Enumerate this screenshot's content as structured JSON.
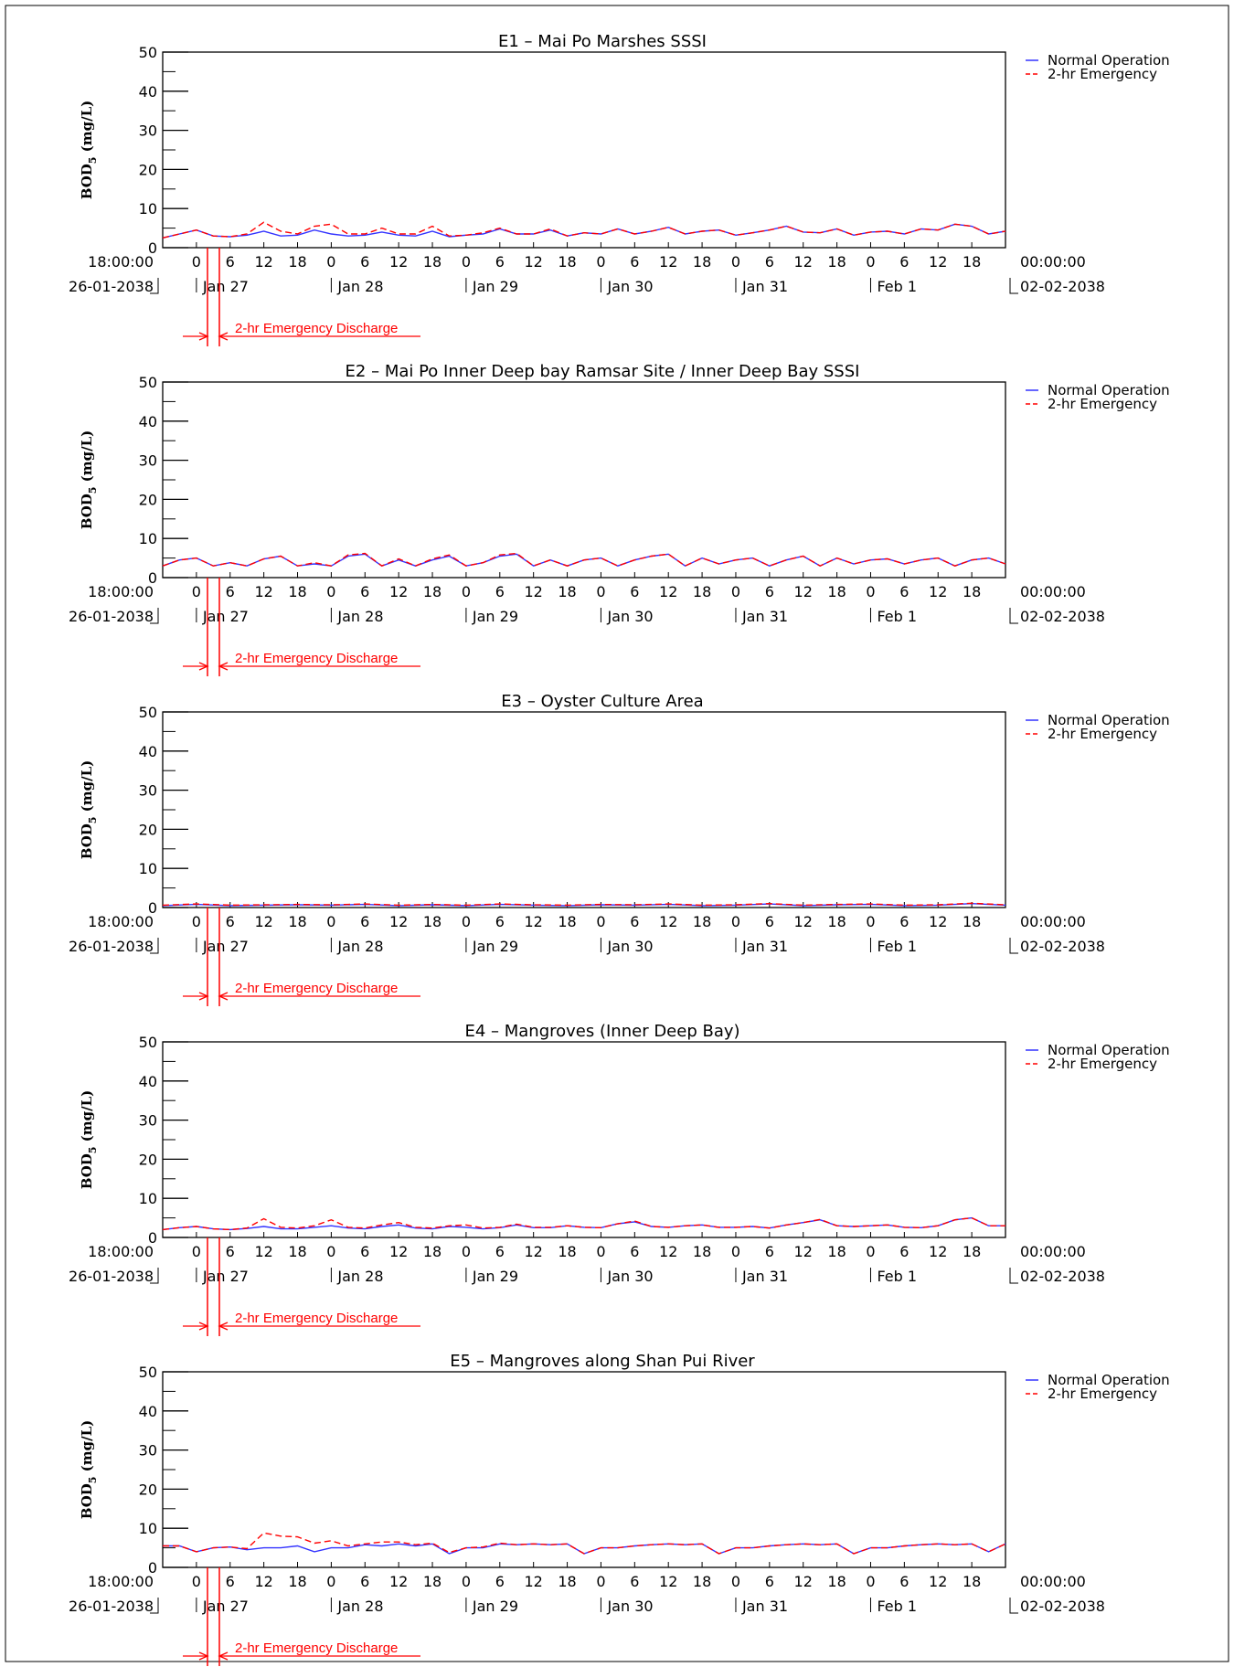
{
  "figure": {
    "legend": {
      "normal": {
        "label": "Normal Operation",
        "color": "#3333ff"
      },
      "emergency": {
        "label": "2-hr Emergency",
        "color": "#ff0000"
      }
    },
    "ylabel_main": "BOD",
    "ylabel_sub": "5",
    "ylabel_unit": " (mg/L)",
    "start_time": "18:00:00",
    "start_date": "26-01-2038",
    "end_time": "00:00:00",
    "end_date": "02-02-2038",
    "hour_ticks": [
      "0",
      "6",
      "12",
      "18",
      "0",
      "6",
      "12",
      "18",
      "0",
      "6",
      "12",
      "18",
      "0",
      "6",
      "12",
      "18",
      "0",
      "6",
      "12",
      "18",
      "0",
      "6",
      "12",
      "18"
    ],
    "day_labels": [
      "Jan 27",
      "Jan 28",
      "Jan 29",
      "Jan 30",
      "Jan 31",
      "Feb 1"
    ],
    "emergency_label": "2-hr Emergency Discharge",
    "y_ticks": [
      0,
      10,
      20,
      30,
      40,
      50
    ]
  },
  "chart_data": [
    {
      "type": "line",
      "title": "E1 – Mai Po Marshes SSSI",
      "ylabel": "BOD5 (mg/L)",
      "ylim": [
        0,
        50
      ],
      "x_unit": "hours from 26-01-2038 18:00",
      "xlim": [
        0,
        150
      ],
      "series": [
        {
          "name": "Normal Operation",
          "x": [
            0,
            3,
            6,
            9,
            12,
            15,
            18,
            21,
            24,
            27,
            30,
            33,
            36,
            39,
            42,
            45,
            48,
            51,
            54,
            57,
            60,
            63,
            66,
            69,
            72,
            75,
            78,
            81,
            84,
            87,
            90,
            93,
            96,
            99,
            102,
            105,
            108,
            111,
            114,
            117,
            120,
            123,
            126,
            129,
            132,
            135,
            138,
            141,
            144,
            147,
            150
          ],
          "values": [
            2.5,
            3.5,
            4.5,
            3.0,
            2.8,
            3.2,
            4.2,
            3.0,
            3.2,
            4.5,
            3.5,
            3.0,
            3.2,
            4.0,
            3.2,
            3.0,
            4.2,
            2.8,
            3.2,
            3.5,
            4.8,
            3.5,
            3.5,
            4.5,
            3.0,
            3.8,
            3.5,
            4.8,
            3.5,
            4.2,
            5.2,
            3.5,
            4.2,
            4.5,
            3.2,
            3.8,
            4.5,
            5.5,
            4.0,
            3.8,
            4.8,
            3.2,
            4.0,
            4.2,
            3.5,
            4.8,
            4.5,
            6.0,
            5.5,
            3.5,
            4.2
          ]
        },
        {
          "name": "2-hr Emergency",
          "x": [
            0,
            3,
            6,
            9,
            12,
            15,
            18,
            21,
            24,
            27,
            30,
            33,
            36,
            39,
            42,
            45,
            48,
            51,
            54,
            57,
            60,
            63,
            66,
            69,
            72,
            75,
            78,
            81,
            84,
            87,
            90,
            93,
            96,
            99,
            102,
            105,
            108,
            111,
            114,
            117,
            120,
            123,
            126,
            129,
            132,
            135,
            138,
            141,
            144,
            147,
            150
          ],
          "values": [
            2.5,
            3.5,
            4.5,
            3.0,
            2.8,
            3.5,
            6.5,
            4.2,
            3.5,
            5.5,
            6.0,
            3.5,
            3.5,
            5.0,
            3.5,
            3.5,
            5.5,
            3.0,
            3.2,
            3.8,
            5.0,
            3.5,
            3.5,
            4.8,
            3.0,
            3.8,
            3.5,
            4.8,
            3.5,
            4.2,
            5.2,
            3.5,
            4.2,
            4.5,
            3.2,
            3.8,
            4.5,
            5.5,
            4.0,
            3.8,
            4.8,
            3.2,
            4.0,
            4.2,
            3.5,
            4.8,
            4.5,
            6.0,
            5.5,
            3.5,
            4.2
          ]
        }
      ]
    },
    {
      "type": "line",
      "title": "E2 – Mai Po Inner Deep bay Ramsar Site / Inner Deep Bay SSSI",
      "ylabel": "BOD5 (mg/L)",
      "ylim": [
        0,
        50
      ],
      "x_unit": "hours from 26-01-2038 18:00",
      "xlim": [
        0,
        150
      ],
      "series": [
        {
          "name": "Normal Operation",
          "x": [
            0,
            3,
            6,
            9,
            12,
            15,
            18,
            21,
            24,
            27,
            30,
            33,
            36,
            39,
            42,
            45,
            48,
            51,
            54,
            57,
            60,
            63,
            66,
            69,
            72,
            75,
            78,
            81,
            84,
            87,
            90,
            93,
            96,
            99,
            102,
            105,
            108,
            111,
            114,
            117,
            120,
            123,
            126,
            129,
            132,
            135,
            138,
            141,
            144,
            147,
            150
          ],
          "values": [
            3.0,
            4.5,
            5.0,
            3.0,
            3.8,
            3.0,
            4.8,
            5.5,
            3.0,
            3.5,
            3.0,
            5.5,
            6.0,
            3.0,
            4.5,
            3.0,
            4.5,
            5.5,
            3.0,
            3.8,
            5.5,
            6.0,
            3.0,
            4.5,
            3.0,
            4.5,
            5.0,
            3.0,
            4.5,
            5.5,
            6.0,
            3.0,
            5.0,
            3.5,
            4.5,
            5.0,
            3.0,
            4.5,
            5.5,
            3.0,
            5.0,
            3.5,
            4.5,
            4.8,
            3.5,
            4.5,
            5.0,
            3.0,
            4.5,
            5.0,
            3.5
          ]
        },
        {
          "name": "2-hr Emergency",
          "x": [
            0,
            3,
            6,
            9,
            12,
            15,
            18,
            21,
            24,
            27,
            30,
            33,
            36,
            39,
            42,
            45,
            48,
            51,
            54,
            57,
            60,
            63,
            66,
            69,
            72,
            75,
            78,
            81,
            84,
            87,
            90,
            93,
            96,
            99,
            102,
            105,
            108,
            111,
            114,
            117,
            120,
            123,
            126,
            129,
            132,
            135,
            138,
            141,
            144,
            147,
            150
          ],
          "values": [
            3.0,
            4.5,
            5.0,
            3.0,
            3.8,
            3.0,
            4.8,
            5.5,
            3.0,
            3.8,
            3.0,
            5.8,
            6.2,
            3.0,
            4.8,
            3.0,
            4.8,
            5.8,
            3.0,
            3.8,
            5.8,
            6.2,
            3.0,
            4.5,
            3.0,
            4.5,
            5.0,
            3.0,
            4.5,
            5.5,
            6.0,
            3.0,
            5.0,
            3.5,
            4.5,
            5.0,
            3.0,
            4.5,
            5.5,
            3.0,
            5.0,
            3.5,
            4.5,
            4.8,
            3.5,
            4.5,
            5.0,
            3.0,
            4.5,
            5.0,
            3.5
          ]
        }
      ]
    },
    {
      "type": "line",
      "title": "E3 – Oyster Culture Area",
      "ylabel": "BOD5 (mg/L)",
      "ylim": [
        0,
        50
      ],
      "x_unit": "hours from 26-01-2038 18:00",
      "xlim": [
        0,
        150
      ],
      "series": [
        {
          "name": "Normal Operation",
          "x": [
            0,
            6,
            12,
            18,
            24,
            30,
            36,
            42,
            48,
            54,
            60,
            66,
            72,
            78,
            84,
            90,
            96,
            102,
            108,
            114,
            120,
            126,
            132,
            138,
            144,
            150
          ],
          "values": [
            0.5,
            0.8,
            0.5,
            0.6,
            0.7,
            0.6,
            0.8,
            0.5,
            0.7,
            0.5,
            0.8,
            0.6,
            0.5,
            0.7,
            0.6,
            0.8,
            0.5,
            0.6,
            0.9,
            0.5,
            0.7,
            0.8,
            0.5,
            0.6,
            1.0,
            0.6
          ]
        },
        {
          "name": "2-hr Emergency",
          "x": [
            0,
            6,
            12,
            18,
            24,
            30,
            36,
            42,
            48,
            54,
            60,
            66,
            72,
            78,
            84,
            90,
            96,
            102,
            108,
            114,
            120,
            126,
            132,
            138,
            144,
            150
          ],
          "values": [
            0.6,
            0.9,
            0.6,
            0.7,
            0.8,
            0.7,
            0.9,
            0.6,
            0.8,
            0.6,
            0.9,
            0.7,
            0.6,
            0.8,
            0.7,
            0.9,
            0.6,
            0.7,
            1.0,
            0.6,
            0.8,
            0.9,
            0.6,
            0.7,
            1.1,
            0.7
          ]
        }
      ]
    },
    {
      "type": "line",
      "title": "E4 – Mangroves (Inner Deep Bay)",
      "ylabel": "BOD5 (mg/L)",
      "ylim": [
        0,
        50
      ],
      "x_unit": "hours from 26-01-2038 18:00",
      "xlim": [
        0,
        150
      ],
      "series": [
        {
          "name": "Normal Operation",
          "x": [
            0,
            3,
            6,
            9,
            12,
            15,
            18,
            21,
            24,
            27,
            30,
            33,
            36,
            39,
            42,
            45,
            48,
            51,
            54,
            57,
            60,
            63,
            66,
            69,
            72,
            75,
            78,
            81,
            84,
            87,
            90,
            93,
            96,
            99,
            102,
            105,
            108,
            111,
            114,
            117,
            120,
            123,
            126,
            129,
            132,
            135,
            138,
            141,
            144,
            147,
            150
          ],
          "values": [
            2.0,
            2.5,
            2.8,
            2.2,
            2.0,
            2.3,
            2.8,
            2.2,
            2.2,
            2.6,
            3.0,
            2.4,
            2.2,
            2.8,
            3.2,
            2.4,
            2.2,
            2.8,
            2.6,
            2.2,
            2.5,
            3.2,
            2.5,
            2.5,
            3.0,
            2.6,
            2.5,
            3.5,
            4.0,
            2.8,
            2.6,
            3.0,
            3.2,
            2.6,
            2.6,
            2.8,
            2.4,
            3.2,
            3.8,
            4.5,
            3.0,
            2.8,
            3.0,
            3.2,
            2.6,
            2.5,
            3.0,
            4.5,
            5.0,
            3.0,
            3.0
          ]
        },
        {
          "name": "2-hr Emergency",
          "x": [
            0,
            3,
            6,
            9,
            12,
            15,
            18,
            21,
            24,
            27,
            30,
            33,
            36,
            39,
            42,
            45,
            48,
            51,
            54,
            57,
            60,
            63,
            66,
            69,
            72,
            75,
            78,
            81,
            84,
            87,
            90,
            93,
            96,
            99,
            102,
            105,
            108,
            111,
            114,
            117,
            120,
            123,
            126,
            129,
            132,
            135,
            138,
            141,
            144,
            147,
            150
          ],
          "values": [
            2.0,
            2.5,
            2.8,
            2.2,
            2.0,
            2.4,
            4.8,
            2.6,
            2.4,
            3.0,
            4.5,
            2.6,
            2.4,
            3.2,
            3.8,
            2.6,
            2.4,
            3.0,
            3.2,
            2.4,
            2.6,
            3.4,
            2.6,
            2.6,
            3.0,
            2.6,
            2.5,
            3.5,
            4.2,
            2.8,
            2.6,
            3.0,
            3.2,
            2.6,
            2.6,
            2.8,
            2.4,
            3.2,
            3.8,
            4.6,
            3.0,
            2.8,
            3.0,
            3.2,
            2.6,
            2.5,
            3.0,
            4.5,
            5.0,
            3.0,
            3.0
          ]
        }
      ]
    },
    {
      "type": "line",
      "title": "E5 – Mangroves along Shan Pui River",
      "ylabel": "BOD5 (mg/L)",
      "ylim": [
        0,
        50
      ],
      "x_unit": "hours from 26-01-2038 18:00",
      "xlim": [
        0,
        150
      ],
      "series": [
        {
          "name": "Normal Operation",
          "x": [
            0,
            3,
            6,
            9,
            12,
            15,
            18,
            21,
            24,
            27,
            30,
            33,
            36,
            39,
            42,
            45,
            48,
            51,
            54,
            57,
            60,
            63,
            66,
            69,
            72,
            75,
            78,
            81,
            84,
            87,
            90,
            93,
            96,
            99,
            102,
            105,
            108,
            111,
            114,
            117,
            120,
            123,
            126,
            129,
            132,
            135,
            138,
            141,
            144,
            147,
            150
          ],
          "values": [
            5.5,
            5.5,
            4.0,
            5.0,
            5.2,
            4.5,
            5.0,
            5.0,
            5.5,
            4.0,
            5.0,
            5.0,
            5.8,
            5.5,
            6.0,
            5.5,
            6.0,
            3.5,
            5.0,
            5.0,
            6.0,
            5.8,
            6.0,
            5.8,
            6.0,
            3.5,
            5.0,
            5.0,
            5.5,
            5.8,
            6.0,
            5.8,
            6.0,
            3.5,
            5.0,
            5.0,
            5.5,
            5.8,
            6.0,
            5.8,
            6.0,
            3.5,
            5.0,
            5.0,
            5.5,
            5.8,
            6.0,
            5.8,
            6.0,
            4.0,
            6.0
          ]
        },
        {
          "name": "2-hr Emergency",
          "x": [
            0,
            3,
            6,
            9,
            12,
            15,
            18,
            21,
            24,
            27,
            30,
            33,
            36,
            39,
            42,
            45,
            48,
            51,
            54,
            57,
            60,
            63,
            66,
            69,
            72,
            75,
            78,
            81,
            84,
            87,
            90,
            93,
            96,
            99,
            102,
            105,
            108,
            111,
            114,
            117,
            120,
            123,
            126,
            129,
            132,
            135,
            138,
            141,
            144,
            147,
            150
          ],
          "values": [
            5.5,
            5.5,
            4.0,
            5.0,
            5.2,
            4.8,
            8.8,
            8.0,
            7.8,
            6.2,
            6.8,
            5.5,
            6.0,
            6.5,
            6.5,
            5.8,
            6.2,
            3.8,
            5.0,
            5.2,
            6.2,
            5.8,
            6.0,
            5.8,
            6.0,
            3.5,
            5.0,
            5.0,
            5.5,
            5.8,
            6.0,
            5.8,
            6.0,
            3.5,
            5.0,
            5.0,
            5.5,
            5.8,
            6.0,
            5.8,
            6.0,
            3.5,
            5.0,
            5.0,
            5.5,
            5.8,
            6.0,
            5.8,
            6.0,
            4.0,
            6.0
          ]
        }
      ]
    }
  ]
}
